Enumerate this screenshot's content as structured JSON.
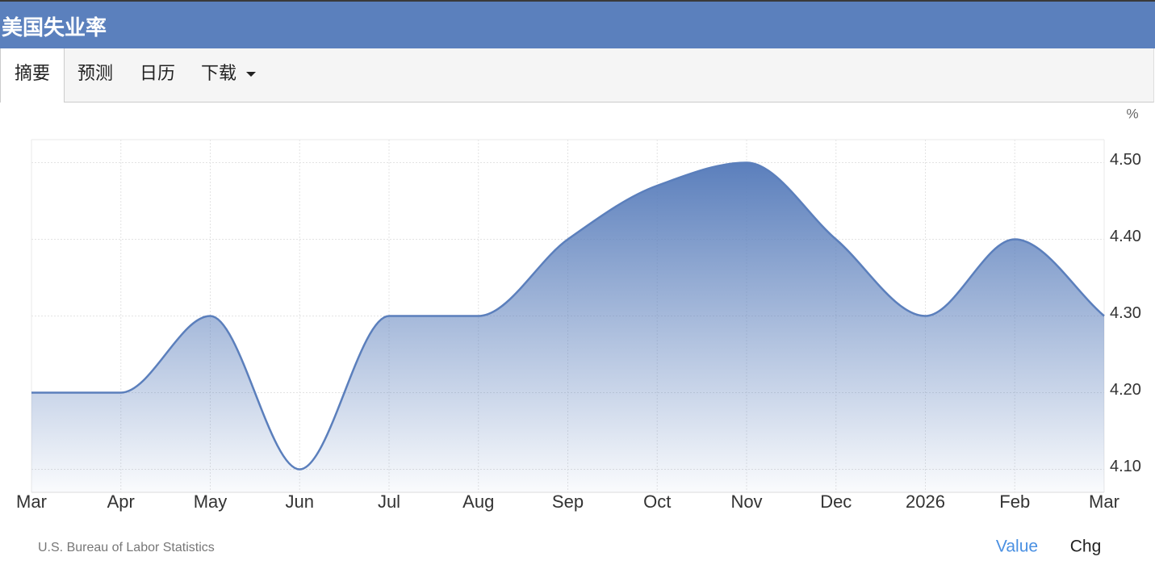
{
  "header": {
    "title": "美国失业率"
  },
  "tabs": [
    "摘要",
    "预测",
    "日历",
    "下载"
  ],
  "chart_data": {
    "type": "area",
    "y_unit": "%",
    "categories": [
      "Mar",
      "Apr",
      "May",
      "Jun",
      "Jul",
      "Aug",
      "Sep",
      "Oct",
      "Nov",
      "Dec",
      "2026",
      "Feb",
      "Mar"
    ],
    "values": [
      4.2,
      4.2,
      4.3,
      4.1,
      4.3,
      4.3,
      4.4,
      4.47,
      4.5,
      4.4,
      4.3,
      4.4,
      4.3
    ],
    "color": "#5b7fbc",
    "ylim": [
      4.07,
      4.53
    ],
    "yticks": [
      {
        "value": 4.1,
        "label": "4.10"
      },
      {
        "value": 4.2,
        "label": "4.20"
      },
      {
        "value": 4.3,
        "label": "4.30"
      },
      {
        "value": 4.4,
        "label": "4.40"
      },
      {
        "value": 4.5,
        "label": "4.50"
      }
    ],
    "grid": true
  },
  "footer": {
    "source": "U.S. Bureau of Labor Statistics",
    "toggles": [
      "Value",
      "Chg"
    ]
  }
}
